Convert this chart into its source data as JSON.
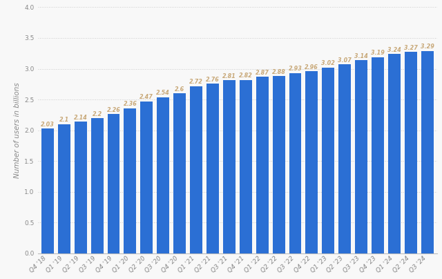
{
  "categories": [
    "Q4 '18",
    "Q1 '19",
    "Q2 '19",
    "Q3 '19",
    "Q4 '19",
    "Q1 '20",
    "Q2 '20",
    "Q3 '20",
    "Q4 '20",
    "Q1 '21",
    "Q2 '21",
    "Q3 '21",
    "Q4 '21",
    "Q1 '22",
    "Q2 '22",
    "Q3 '22",
    "Q4 '22",
    "Q1 '23",
    "Q2 '23",
    "Q3 '23",
    "Q4 '23",
    "Q1 '24",
    "Q2 '24",
    "Q3 '24"
  ],
  "values": [
    2.03,
    2.1,
    2.14,
    2.2,
    2.26,
    2.36,
    2.47,
    2.54,
    2.6,
    2.72,
    2.76,
    2.81,
    2.82,
    2.87,
    2.88,
    2.93,
    2.96,
    3.02,
    3.07,
    3.14,
    3.19,
    3.24,
    3.27,
    3.29
  ],
  "bar_color": "#2b6fd4",
  "label_color": "#c8a878",
  "ylabel": "Number of users in billions",
  "ylim": [
    0,
    4
  ],
  "yticks": [
    0,
    0.5,
    1,
    1.5,
    2,
    2.5,
    3,
    3.5,
    4
  ],
  "bg_color": "#f8f8f8",
  "plot_bg_color": "#f8f8f8",
  "label_fontsize": 5.8,
  "axis_label_fontsize": 7.5,
  "tick_fontsize": 6.5,
  "grid_color": "#cccccc",
  "bar_width": 0.75
}
